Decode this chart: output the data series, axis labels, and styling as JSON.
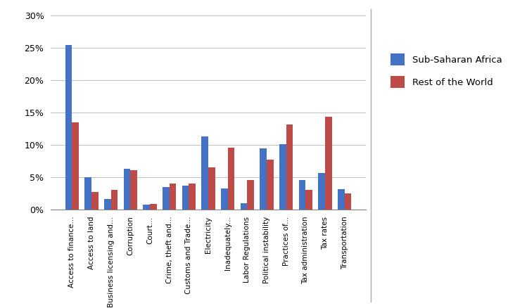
{
  "categories": [
    "Access to finance...",
    "Access to land",
    "Business licensing and...",
    "Corruption",
    "Court...",
    "Crime, theft and...",
    "Customs and Trade...",
    "Electricity",
    "Inadequately...",
    "Labor Regulations",
    "Political instability",
    "Practices of...",
    "Tax administration",
    "Tax rates",
    "Transportation"
  ],
  "ssa_values": [
    0.254,
    0.05,
    0.016,
    0.063,
    0.007,
    0.035,
    0.037,
    0.113,
    0.032,
    0.01,
    0.094,
    0.101,
    0.046,
    0.056,
    0.031
  ],
  "row_values": [
    0.135,
    0.027,
    0.03,
    0.061,
    0.008,
    0.04,
    0.04,
    0.065,
    0.095,
    0.045,
    0.077,
    0.131,
    0.03,
    0.143,
    0.025
  ],
  "ssa_color": "#4472C4",
  "row_color": "#BE4B48",
  "ylim": [
    0,
    0.3
  ],
  "yticks": [
    0.0,
    0.05,
    0.1,
    0.15,
    0.2,
    0.25,
    0.3
  ],
  "ytick_labels": [
    "0%",
    "5%",
    "10%",
    "15%",
    "20%",
    "25%",
    "30%"
  ],
  "legend_ssa": "Sub-Saharan Africa",
  "legend_row": "Rest of the World",
  "bar_width": 0.35,
  "background_color": "#FFFFFF",
  "grid_color": "#BFBFBF"
}
